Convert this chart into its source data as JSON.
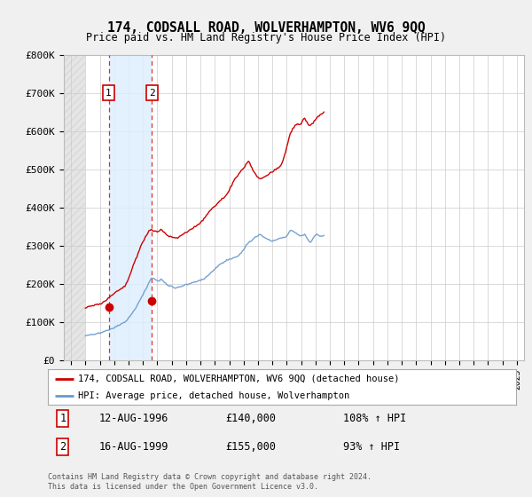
{
  "title": "174, CODSALL ROAD, WOLVERHAMPTON, WV6 9QQ",
  "subtitle": "Price paid vs. HM Land Registry's House Price Index (HPI)",
  "background_color": "#f0f0f0",
  "plot_bg_color": "#ffffff",
  "red_line_color": "#cc0000",
  "blue_line_color": "#6699cc",
  "blue_shade_color": "#ddeeff",
  "hatch_color": "#cccccc",
  "sale1_year": 1996.617,
  "sale1_price": 140000,
  "sale2_year": 1999.617,
  "sale2_price": 155000,
  "ylim_max": 800000,
  "ylim_min": 0,
  "xlim_min": 1993.5,
  "xlim_max": 2025.5,
  "footer": "Contains HM Land Registry data © Crown copyright and database right 2024.\nThis data is licensed under the Open Government Licence v3.0.",
  "legend_label1": "174, CODSALL ROAD, WOLVERHAMPTON, WV6 9QQ (detached house)",
  "legend_label2": "HPI: Average price, detached house, Wolverhampton",
  "table_row1": [
    "1",
    "12-AUG-1996",
    "£140,000",
    "108% ↑ HPI"
  ],
  "table_row2": [
    "2",
    "16-AUG-1999",
    "£155,000",
    "93% ↑ HPI"
  ],
  "hpi_base_values": [
    65000,
    65500,
    66000,
    66500,
    67000,
    67500,
    68000,
    68500,
    69000,
    69500,
    70000,
    70800,
    71600,
    72400,
    73500,
    74500,
    75500,
    76500,
    77500,
    78800,
    80000,
    81500,
    83000,
    84500,
    86000,
    87500,
    89000,
    90500,
    92000,
    93500,
    95000,
    96500,
    98000,
    100000,
    103000,
    107000,
    111000,
    115000,
    119000,
    123000,
    127000,
    132000,
    137000,
    142000,
    148000,
    154000,
    160000,
    166000,
    172000,
    178000,
    184000,
    190000,
    196000,
    202000,
    208000,
    213000,
    215000,
    214000,
    212000,
    210000,
    208000,
    208000,
    210000,
    212000,
    210000,
    207000,
    204000,
    201000,
    198000,
    196000,
    195000,
    194000,
    193000,
    192000,
    191000,
    190000,
    190000,
    191000,
    192000,
    193000,
    194000,
    195000,
    196000,
    197000,
    198000,
    199000,
    200000,
    201000,
    202000,
    203000,
    204000,
    205000,
    206000,
    207000,
    208000,
    209000,
    210000,
    211000,
    212000,
    213000,
    215000,
    218000,
    221000,
    224000,
    227000,
    230000,
    233000,
    236000,
    239000,
    242000,
    245000,
    248000,
    250000,
    252000,
    254000,
    256000,
    258000,
    260000,
    262000,
    263000,
    264000,
    265000,
    266000,
    267000,
    268000,
    269000,
    270000,
    272000,
    275000,
    278000,
    281000,
    285000,
    290000,
    295000,
    300000,
    305000,
    308000,
    310000,
    312000,
    315000,
    318000,
    320000,
    322000,
    324000,
    326000,
    328000,
    330000,
    328000,
    325000,
    322000,
    320000,
    318000,
    316000,
    315000,
    314000,
    313000,
    312000,
    313000,
    314000,
    315000,
    316000,
    317000,
    318000,
    319000,
    320000,
    321000,
    322000,
    323000,
    325000,
    330000,
    335000,
    340000,
    340000,
    338000,
    336000,
    334000,
    332000,
    330000,
    328000,
    326000,
    325000,
    326000,
    328000,
    330000,
    325000,
    320000,
    315000,
    310000,
    310000,
    315000,
    320000,
    325000,
    328000,
    330000,
    328000,
    326000,
    325000,
    325000,
    325000,
    326000
  ],
  "red_base_values": [
    138000,
    138500,
    139000,
    139500,
    140000,
    141000,
    142000,
    143000,
    144000,
    145000,
    146000,
    147000,
    148000,
    149000,
    151000,
    153000,
    155000,
    157000,
    159000,
    162000,
    164000,
    167000,
    170000,
    173000,
    176000,
    178000,
    180000,
    182000,
    184000,
    186000,
    188000,
    190000,
    192000,
    195000,
    200000,
    208000,
    216000,
    224000,
    232000,
    240000,
    248000,
    256000,
    264000,
    272000,
    280000,
    288000,
    296000,
    304000,
    310000,
    316000,
    322000,
    328000,
    334000,
    338000,
    340000,
    341000,
    340000,
    339000,
    338000,
    337000,
    336000,
    337000,
    340000,
    343000,
    341000,
    338000,
    334000,
    330000,
    328000,
    326000,
    325000,
    324000,
    323000,
    322000,
    321000,
    320000,
    320000,
    321000,
    323000,
    325000,
    327000,
    329000,
    331000,
    333000,
    335000,
    337000,
    339000,
    341000,
    343000,
    345000,
    347000,
    349000,
    351000,
    353000,
    355000,
    357000,
    360000,
    363000,
    367000,
    371000,
    375000,
    379000,
    383000,
    387000,
    391000,
    395000,
    398000,
    401000,
    404000,
    407000,
    410000,
    413000,
    416000,
    419000,
    422000,
    425000,
    428000,
    431000,
    435000,
    440000,
    446000,
    452000,
    458000,
    464000,
    470000,
    476000,
    480000,
    484000,
    488000,
    492000,
    496000,
    500000,
    504000,
    508000,
    512000,
    516000,
    520000,
    516000,
    510000,
    504000,
    498000,
    492000,
    487000,
    483000,
    480000,
    477000,
    474000,
    476000,
    478000,
    480000,
    482000,
    484000,
    486000,
    488000,
    490000,
    492000,
    494000,
    496000,
    498000,
    500000,
    502000,
    504000,
    506000,
    510000,
    516000,
    524000,
    534000,
    546000,
    558000,
    570000,
    582000,
    594000,
    600000,
    606000,
    610000,
    614000,
    616000,
    618000,
    618000,
    618000,
    620000,
    625000,
    630000,
    635000,
    628000,
    622000,
    618000,
    615000,
    615000,
    618000,
    622000,
    626000,
    630000,
    634000,
    638000,
    640000,
    642000,
    644000,
    646000,
    648000
  ]
}
